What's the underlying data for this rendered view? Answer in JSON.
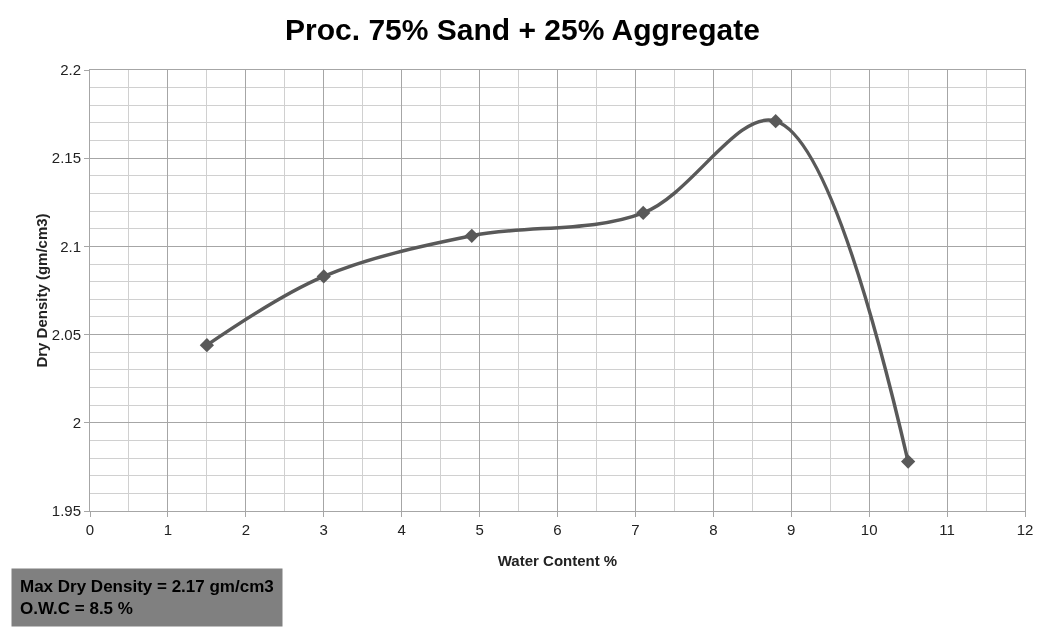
{
  "chart_data": {
    "type": "line",
    "title": "Proc. 75% Sand + 25% Aggregate",
    "xlabel": "Water Content %",
    "ylabel": "Dry Density (gm/cm3)",
    "x": [
      1.5,
      3,
      4.9,
      7.1,
      8.8,
      10.5
    ],
    "series": [
      {
        "color": "#595959",
        "values": [
          2.044,
          2.083,
          2.106,
          2.119,
          2.171,
          1.978
        ]
      }
    ],
    "xlim": [
      0,
      12
    ],
    "xticks": [
      0,
      1,
      2,
      3,
      4,
      5,
      6,
      7,
      8,
      9,
      10,
      11,
      12
    ],
    "ylim": [
      1.95,
      2.2
    ],
    "yticks": [
      1.95,
      2,
      2.05,
      2.1,
      2.15,
      2.2
    ],
    "grid": true,
    "marker": "diamond",
    "line_style": "solid",
    "annotations": [
      "Max Dry Density = 2.17 gm/cm3\nO.W.C = 8.5 %"
    ]
  }
}
